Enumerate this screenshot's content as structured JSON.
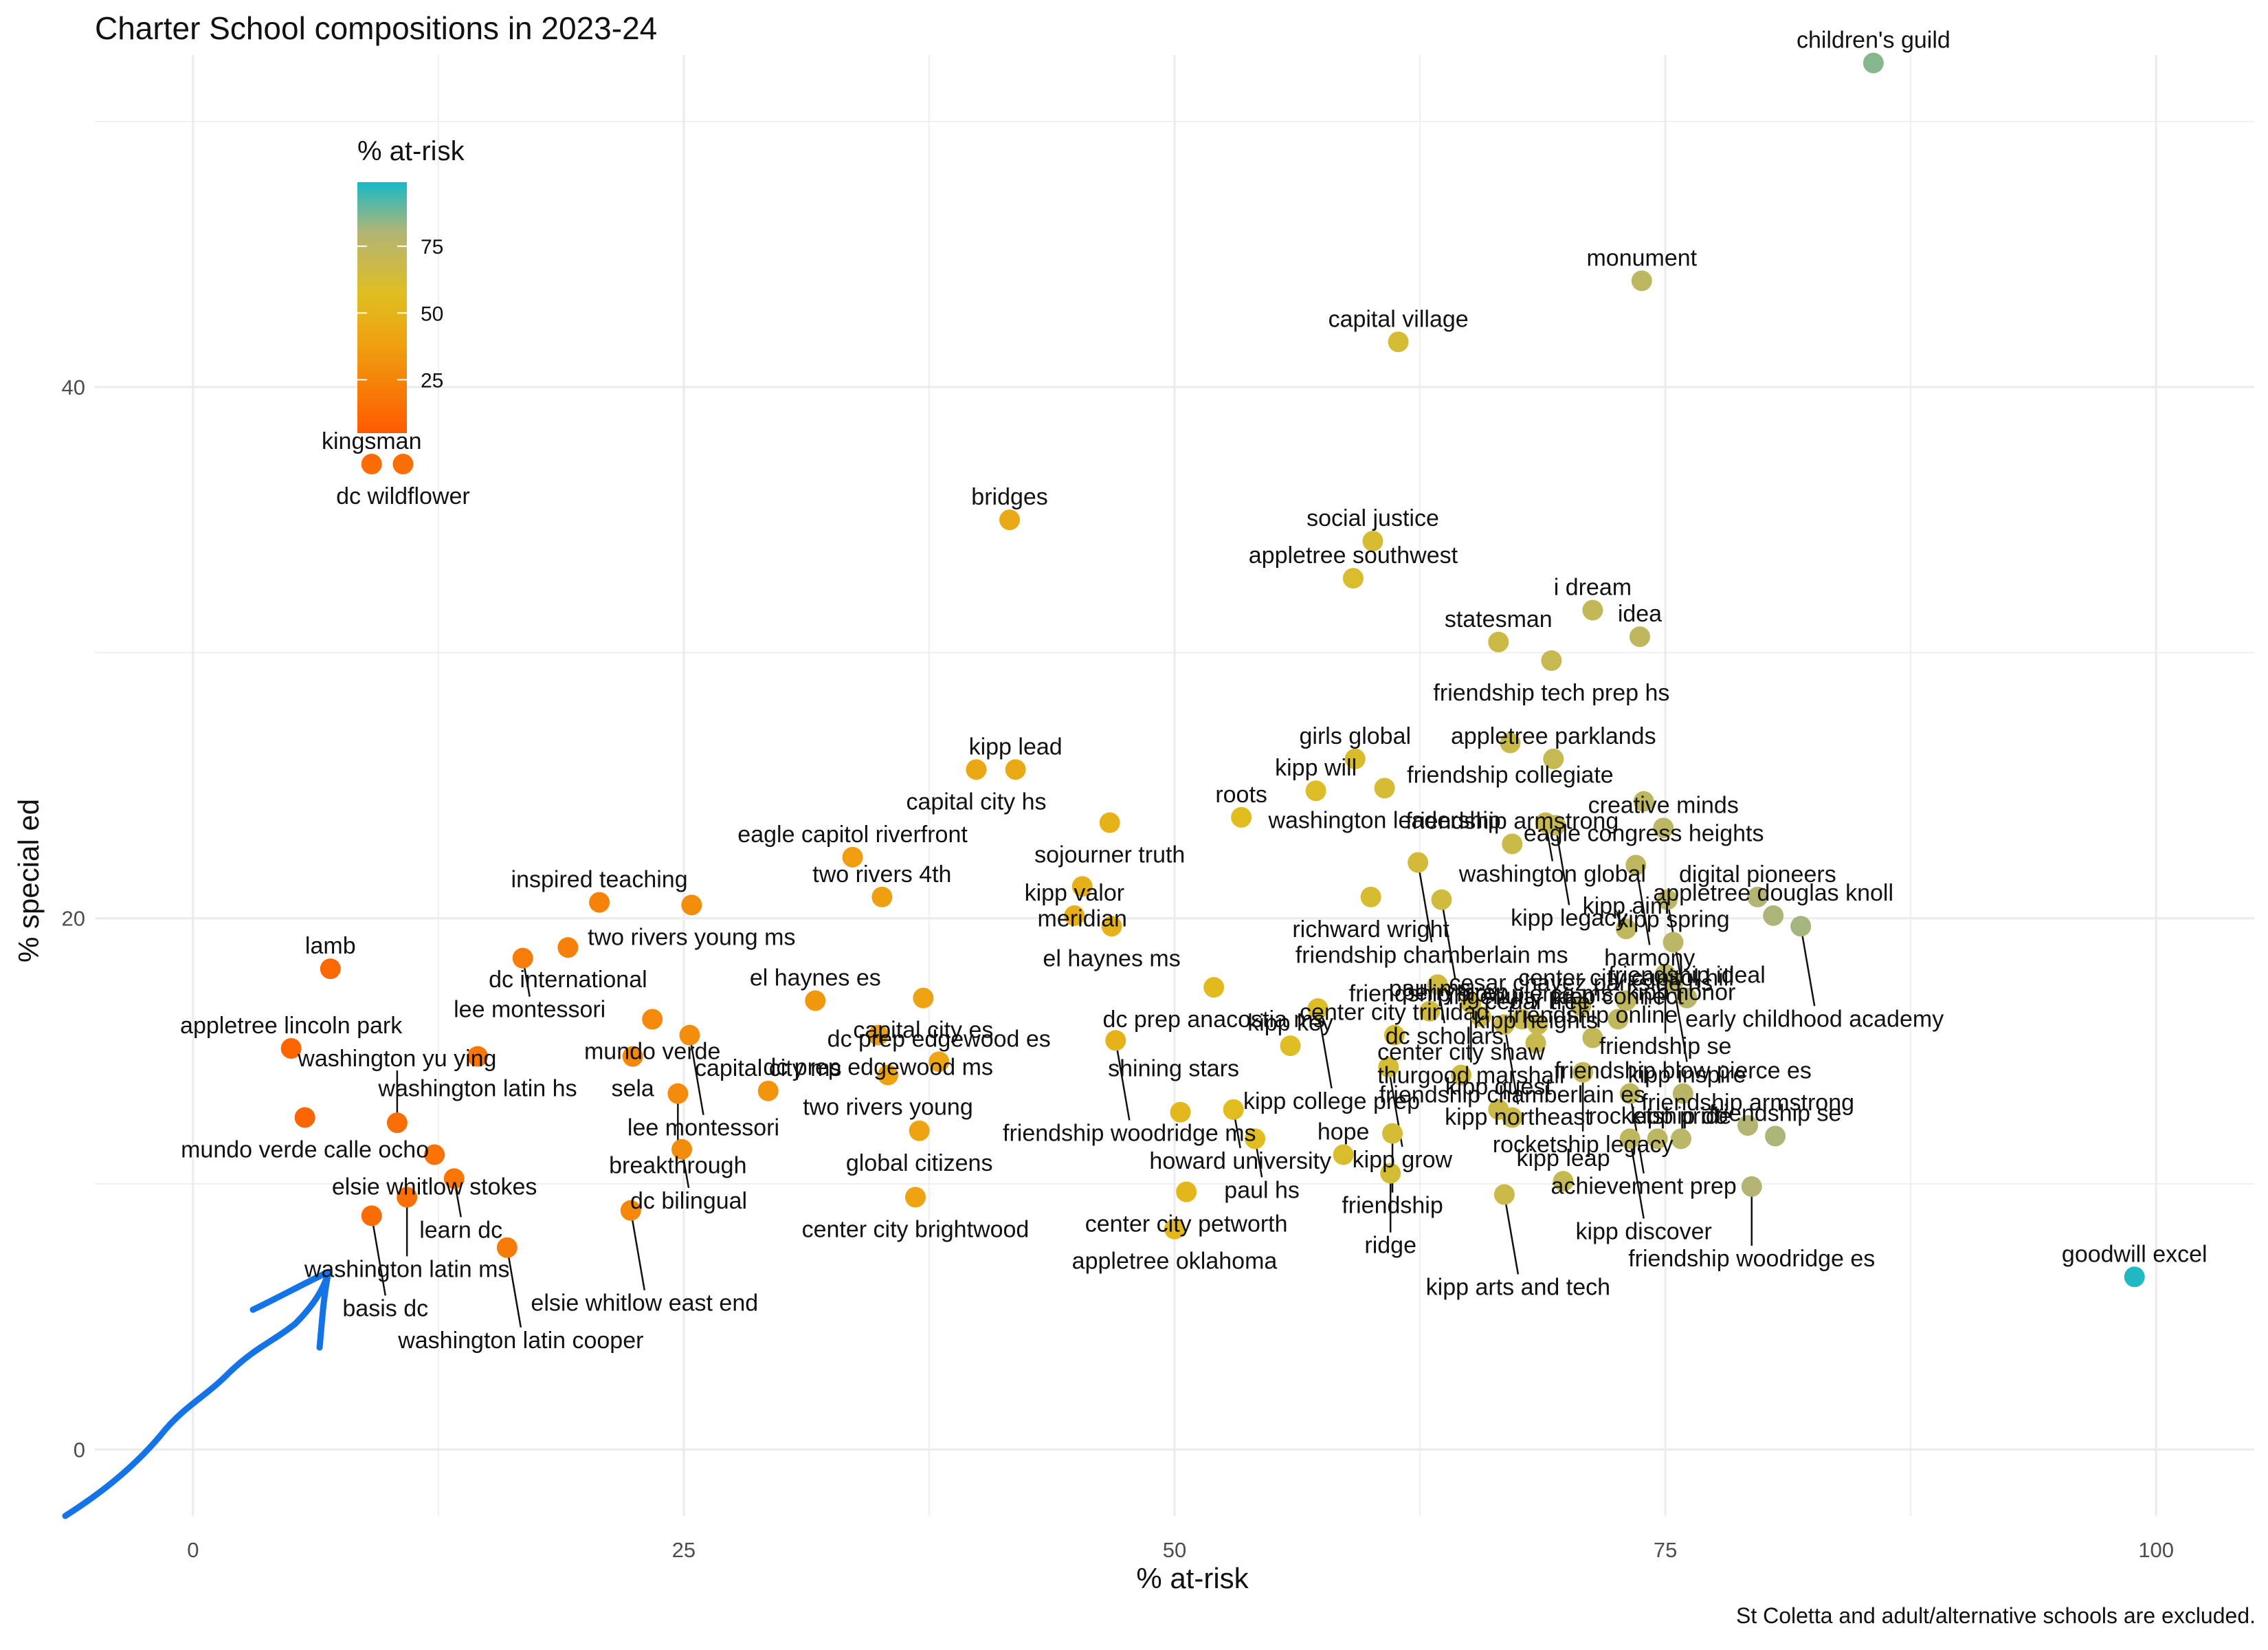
{
  "title": "Charter School compositions in 2023-24",
  "caption": "St Coletta and adult/alternative schools are excluded.",
  "chart_data": {
    "type": "scatter",
    "title": "Charter School compositions in 2023-24",
    "xlabel": "% at-risk",
    "ylabel": "% special ed",
    "xlim": [
      -5,
      105
    ],
    "ylim": [
      -2.5,
      52.5
    ],
    "x_ticks": [
      0,
      25,
      50,
      75,
      100
    ],
    "y_ticks": [
      0,
      20,
      40
    ],
    "grid": true,
    "legend": {
      "title": "% at-risk",
      "type": "colorbar",
      "placement": "top-left",
      "ticks": [
        25,
        50,
        75
      ],
      "colors": [
        "#FF5A00",
        "#E8B010",
        "#B9B86E",
        "#18B9C8"
      ]
    },
    "points": [
      {
        "label": "children's guild",
        "x": 85.6,
        "y": 52.2
      },
      {
        "label": "monument",
        "x": 73.8,
        "y": 44.0
      },
      {
        "label": "capital village",
        "x": 61.4,
        "y": 41.7
      },
      {
        "label": "kingsman",
        "x": 9.1,
        "y": 37.1
      },
      {
        "label": "dc wildflower",
        "x": 10.7,
        "y": 37.1
      },
      {
        "label": "bridges",
        "x": 41.6,
        "y": 35.0
      },
      {
        "label": "social justice",
        "x": 60.1,
        "y": 34.2
      },
      {
        "label": "appletree southwest",
        "x": 59.1,
        "y": 32.8
      },
      {
        "label": "statesman",
        "x": 66.5,
        "y": 30.4
      },
      {
        "label": "i dream",
        "x": 71.3,
        "y": 31.6
      },
      {
        "label": "idea",
        "x": 73.7,
        "y": 30.6
      },
      {
        "label": "friendship tech prep hs",
        "x": 69.2,
        "y": 29.7
      },
      {
        "label": "girls global",
        "x": 59.2,
        "y": 26.0
      },
      {
        "label": "friendship collegiate",
        "x": 67.1,
        "y": 26.6
      },
      {
        "label": "appletree parklands",
        "x": 69.3,
        "y": 26.0
      },
      {
        "label": "kipp lead",
        "x": 41.9,
        "y": 25.6
      },
      {
        "label": "capital city hs",
        "x": 39.9,
        "y": 25.6
      },
      {
        "label": "kipp will",
        "x": 57.2,
        "y": 24.8
      },
      {
        "label": "washington leadership",
        "x": 60.7,
        "y": 24.9
      },
      {
        "label": "eagle congress heights",
        "x": 73.9,
        "y": 24.4
      },
      {
        "label": "sojourner truth",
        "x": 46.7,
        "y": 23.6
      },
      {
        "label": "roots",
        "x": 53.4,
        "y": 23.8
      },
      {
        "label": "washington global",
        "x": 68.9,
        "y": 23.6
      },
      {
        "label": "kipp legacy",
        "x": 69.4,
        "y": 23.5
      },
      {
        "label": "creative minds",
        "x": 74.9,
        "y": 23.4
      },
      {
        "label": "friendship armstrong",
        "x": 67.2,
        "y": 22.8
      },
      {
        "label": "eagle capitol riverfront",
        "x": 33.6,
        "y": 22.3
      },
      {
        "label": "friendship chamberlain ms",
        "x": 62.4,
        "y": 22.1
      },
      {
        "label": "harmony",
        "x": 73.5,
        "y": 22.0
      },
      {
        "label": "two rivers 4th",
        "x": 35.1,
        "y": 20.8
      },
      {
        "label": "meridian",
        "x": 45.3,
        "y": 21.2
      },
      {
        "label": "richward wright",
        "x": 60.0,
        "y": 20.8
      },
      {
        "label": "perry prep",
        "x": 63.6,
        "y": 20.7
      },
      {
        "label": "kipp honor",
        "x": 75.1,
        "y": 20.7
      },
      {
        "label": "digital pioneers",
        "x": 79.7,
        "y": 20.8
      },
      {
        "label": "inspired teaching",
        "x": 20.7,
        "y": 20.6
      },
      {
        "label": "two rivers young ms",
        "x": 25.4,
        "y": 20.5
      },
      {
        "label": "kipp valor",
        "x": 44.9,
        "y": 20.1
      },
      {
        "label": "el haynes ms",
        "x": 46.8,
        "y": 19.7
      },
      {
        "label": "appletree douglas knoll",
        "x": 80.5,
        "y": 20.1
      },
      {
        "label": "early childhood academy",
        "x": 81.9,
        "y": 19.7
      },
      {
        "label": "kipp aim",
        "x": 73.0,
        "y": 19.6
      },
      {
        "label": "dc international",
        "x": 19.1,
        "y": 18.9
      },
      {
        "label": "kipp spring",
        "x": 75.4,
        "y": 19.1
      },
      {
        "label": "friendship se",
        "x": 75.0,
        "y": 17.9
      },
      {
        "label": "lamb",
        "x": 7.0,
        "y": 18.1
      },
      {
        "label": "lee montessori",
        "x": 16.8,
        "y": 18.5
      },
      {
        "label": "dc prep anacostia ms",
        "x": 52.0,
        "y": 17.4
      },
      {
        "label": "dc scholars",
        "x": 63.4,
        "y": 17.5
      },
      {
        "label": "kipp inspire",
        "x": 75.4,
        "y": 17.6
      },
      {
        "label": "friendship ideal",
        "x": 76.1,
        "y": 17.0
      },
      {
        "label": "thurgood marshall",
        "x": 65.1,
        "y": 16.8
      },
      {
        "label": "center city capitol hill",
        "x": 73.0,
        "y": 16.9
      },
      {
        "label": "mundo verde",
        "x": 23.4,
        "y": 16.2
      },
      {
        "label": "el haynes es",
        "x": 31.7,
        "y": 16.9
      },
      {
        "label": "capital city es",
        "x": 37.2,
        "y": 17.0
      },
      {
        "label": "kipp college prep",
        "x": 57.3,
        "y": 16.6
      },
      {
        "label": "paul ms",
        "x": 63.0,
        "y": 16.5
      },
      {
        "label": "friendship blow pierce ms",
        "x": 65.6,
        "y": 16.3
      },
      {
        "label": "kipp northeast",
        "x": 66.8,
        "y": 16.0
      },
      {
        "label": "ingenuity prep",
        "x": 67.7,
        "y": 16.2
      },
      {
        "label": "cedar tree",
        "x": 68.5,
        "y": 16.0
      },
      {
        "label": "cesar chavez parkside hs",
        "x": 70.7,
        "y": 16.7
      },
      {
        "label": "kipp connect",
        "x": 72.6,
        "y": 16.2
      },
      {
        "label": "appletree lincoln park",
        "x": 5.0,
        "y": 15.1
      },
      {
        "label": "washington latin hs",
        "x": 14.5,
        "y": 14.8
      },
      {
        "label": "sela",
        "x": 22.4,
        "y": 14.8
      },
      {
        "label": "lee montessori",
        "x": 25.3,
        "y": 15.6
      },
      {
        "label": "dc prep edgewood ms",
        "x": 34.9,
        "y": 15.6
      },
      {
        "label": "friendship woodridge ms",
        "x": 47.0,
        "y": 15.4
      },
      {
        "label": "kipp key",
        "x": 55.9,
        "y": 15.2
      },
      {
        "label": "center city trinidad",
        "x": 61.2,
        "y": 15.6
      },
      {
        "label": "kipp heights",
        "x": 68.4,
        "y": 15.3
      },
      {
        "label": "friendship online",
        "x": 71.3,
        "y": 15.5
      },
      {
        "label": "rocketship legacy",
        "x": 70.8,
        "y": 14.2
      },
      {
        "label": "mundo verde calle ocho",
        "x": 5.7,
        "y": 12.5
      },
      {
        "label": "breakthrough",
        "x": 24.7,
        "y": 13.4
      },
      {
        "label": "capital city ms",
        "x": 29.3,
        "y": 13.5
      },
      {
        "label": "two rivers young",
        "x": 35.4,
        "y": 14.1
      },
      {
        "label": "dc prep edgewood es",
        "x": 38.0,
        "y": 14.6
      },
      {
        "label": "kipp grow",
        "x": 60.9,
        "y": 14.4
      },
      {
        "label": "center city shaw",
        "x": 64.6,
        "y": 14.1
      },
      {
        "label": "achievement prep",
        "x": 73.2,
        "y": 13.4
      },
      {
        "label": "friendship blow pierce es",
        "x": 75.9,
        "y": 13.4
      },
      {
        "label": "washington yu ying",
        "x": 10.4,
        "y": 12.3
      },
      {
        "label": "elsie whitlow stokes",
        "x": 12.3,
        "y": 11.1
      },
      {
        "label": "dc bilingual",
        "x": 24.9,
        "y": 11.3
      },
      {
        "label": "shining stars",
        "x": 50.3,
        "y": 12.7
      },
      {
        "label": "howard university",
        "x": 53.0,
        "y": 12.8
      },
      {
        "label": "paul hs",
        "x": 54.1,
        "y": 11.7
      },
      {
        "label": "kipp quest",
        "x": 66.5,
        "y": 12.8
      },
      {
        "label": "friendship chamberlain es",
        "x": 67.2,
        "y": 12.5
      },
      {
        "label": "kipp discover",
        "x": 73.2,
        "y": 11.7
      },
      {
        "label": "rocketship dc",
        "x": 74.6,
        "y": 11.7
      },
      {
        "label": "kipp pride",
        "x": 75.8,
        "y": 11.7
      },
      {
        "label": "friendship armstrong",
        "x": 79.2,
        "y": 12.2
      },
      {
        "label": "friendship se",
        "x": 80.6,
        "y": 11.8
      },
      {
        "label": "global citizens",
        "x": 37.0,
        "y": 12.0
      },
      {
        "label": "hope",
        "x": 58.6,
        "y": 11.1
      },
      {
        "label": "friendship",
        "x": 61.1,
        "y": 11.9
      },
      {
        "label": "learn dc",
        "x": 13.3,
        "y": 10.2
      },
      {
        "label": "washington latin ms",
        "x": 10.9,
        "y": 9.5
      },
      {
        "label": "center city brightwood",
        "x": 36.8,
        "y": 9.5
      },
      {
        "label": "ridge",
        "x": 61.0,
        "y": 10.4
      },
      {
        "label": "center city petworth",
        "x": 50.6,
        "y": 9.7
      },
      {
        "label": "kipp arts and tech",
        "x": 66.8,
        "y": 9.6
      },
      {
        "label": "kipp leap",
        "x": 69.8,
        "y": 10.1
      },
      {
        "label": "friendship woodridge es",
        "x": 79.4,
        "y": 9.9
      },
      {
        "label": "basis dc",
        "x": 9.1,
        "y": 8.8
      },
      {
        "label": "elsie whitlow east end",
        "x": 22.3,
        "y": 9.0
      },
      {
        "label": "washington latin cooper",
        "x": 16.0,
        "y": 7.6
      },
      {
        "label": "appletree oklahoma",
        "x": 50.0,
        "y": 8.3
      },
      {
        "label": "goodwill excel",
        "x": 98.9,
        "y": 6.5
      }
    ]
  }
}
